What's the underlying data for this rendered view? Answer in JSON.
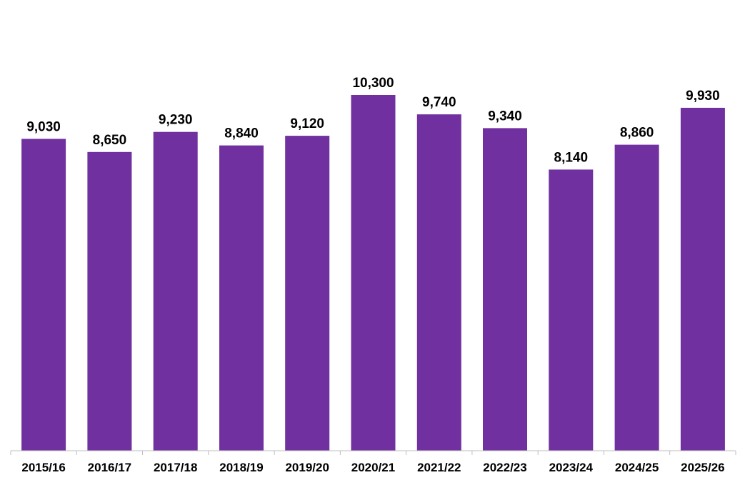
{
  "chart_data": {
    "type": "bar",
    "title": "",
    "xlabel": "",
    "ylabel": "",
    "categories": [
      "2015/16",
      "2016/17",
      "2017/18",
      "2018/19",
      "2019/20",
      "2020/21",
      "2021/22",
      "2022/23",
      "2023/24",
      "2024/25",
      "2025/26"
    ],
    "values": [
      9030,
      8650,
      9230,
      8840,
      9120,
      10300,
      9740,
      9340,
      8140,
      8860,
      9930
    ],
    "value_labels": [
      "9,030",
      "8,650",
      "9,230",
      "8,840",
      "9,120",
      "10,300",
      "9,740",
      "9,340",
      "8,140",
      "8,860",
      "9,930"
    ],
    "ylim": [
      0,
      10300
    ],
    "grid": false,
    "legend": "none",
    "bar_color": "#7030A0",
    "axis_color": "#BFBFBF"
  }
}
